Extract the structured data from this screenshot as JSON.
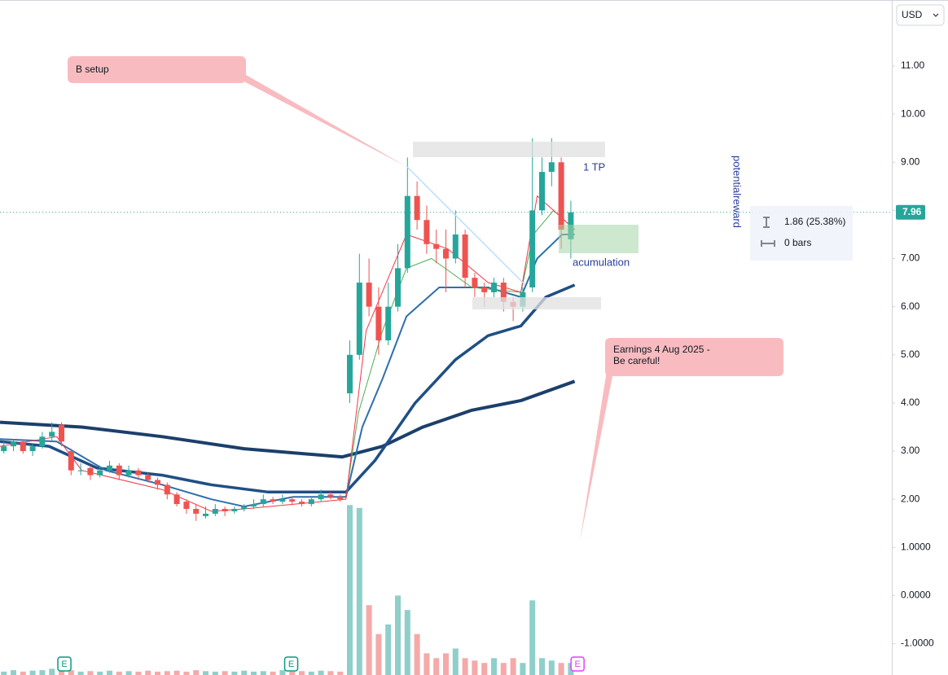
{
  "chart_data": {
    "type": "candlestick",
    "currency": "USD",
    "x": [
      0,
      1,
      2,
      3,
      4,
      5,
      6,
      7,
      8,
      9,
      10,
      11,
      12,
      13,
      14,
      15,
      16,
      17,
      18,
      19,
      20,
      21,
      22,
      23,
      24,
      25,
      26,
      27,
      28,
      29,
      30,
      31,
      32,
      33,
      34,
      35,
      36,
      37,
      38,
      39,
      40,
      41,
      42,
      43,
      44,
      45,
      46,
      47,
      48,
      49,
      50,
      51,
      52,
      53,
      54,
      55,
      56,
      57,
      58,
      59
    ],
    "open": [
      3.0,
      3.1,
      3.2,
      3.0,
      3.1,
      3.3,
      3.55,
      3.0,
      2.6,
      2.65,
      2.5,
      2.6,
      2.7,
      2.5,
      2.6,
      2.5,
      2.4,
      2.3,
      2.1,
      1.95,
      1.8,
      1.65,
      1.7,
      1.8,
      1.75,
      1.8,
      1.85,
      1.9,
      2.0,
      1.95,
      2.0,
      1.95,
      1.9,
      2.0,
      2.1,
      2.05,
      4.2,
      5.0,
      6.5,
      6.0,
      5.3,
      6.0,
      6.8,
      8.3,
      7.8,
      7.3,
      7.2,
      7.0,
      7.5,
      6.6,
      6.4,
      6.3,
      6.5,
      6.1,
      6.0,
      6.4,
      8.0,
      8.8,
      9.0,
      7.4
    ],
    "high": [
      3.2,
      3.25,
      3.25,
      3.15,
      3.4,
      3.6,
      3.6,
      3.05,
      2.75,
      2.7,
      2.7,
      2.8,
      2.75,
      2.7,
      2.65,
      2.55,
      2.45,
      2.35,
      2.15,
      2.0,
      1.9,
      1.85,
      1.9,
      1.85,
      1.85,
      1.9,
      2.0,
      2.1,
      2.05,
      2.1,
      2.05,
      2.0,
      2.05,
      2.2,
      2.15,
      2.1,
      5.3,
      7.1,
      7.0,
      6.4,
      6.5,
      7.3,
      9.1,
      8.6,
      8.1,
      7.6,
      7.6,
      8.0,
      7.6,
      6.7,
      6.5,
      6.6,
      6.6,
      6.2,
      6.4,
      9.5,
      9.1,
      9.5,
      9.1,
      8.2
    ],
    "low": [
      2.95,
      3.0,
      2.95,
      2.9,
      3.05,
      3.2,
      3.1,
      2.5,
      2.5,
      2.4,
      2.45,
      2.55,
      2.4,
      2.45,
      2.4,
      2.35,
      2.2,
      2.0,
      1.85,
      1.7,
      1.55,
      1.6,
      1.65,
      1.65,
      1.7,
      1.75,
      1.8,
      1.85,
      1.9,
      1.9,
      1.9,
      1.85,
      1.85,
      1.95,
      2.0,
      1.95,
      4.0,
      4.9,
      5.8,
      5.0,
      5.2,
      5.9,
      6.7,
      7.6,
      7.1,
      6.9,
      6.3,
      6.9,
      6.4,
      6.2,
      6.0,
      6.2,
      5.9,
      5.7,
      5.9,
      6.3,
      7.9,
      8.5,
      7.2,
      7.0
    ],
    "close": [
      3.1,
      3.2,
      3.0,
      3.1,
      3.3,
      3.4,
      3.2,
      2.6,
      2.6,
      2.5,
      2.6,
      2.7,
      2.5,
      2.6,
      2.5,
      2.4,
      2.3,
      2.1,
      1.9,
      1.8,
      1.7,
      1.7,
      1.8,
      1.75,
      1.8,
      1.85,
      1.9,
      2.0,
      1.95,
      2.0,
      1.95,
      1.9,
      2.0,
      2.1,
      2.05,
      2.0,
      5.0,
      6.5,
      6.0,
      5.3,
      6.0,
      6.8,
      8.3,
      7.8,
      7.3,
      7.2,
      7.0,
      7.5,
      6.6,
      6.4,
      6.3,
      6.5,
      6.1,
      6.0,
      6.3,
      8.0,
      8.8,
      9.0,
      7.6,
      7.96
    ],
    "volume": [
      -1.58,
      -1.55,
      -1.58,
      -1.56,
      -1.55,
      -1.52,
      -1.5,
      -1.55,
      -1.58,
      -1.57,
      -1.58,
      -1.56,
      -1.58,
      -1.57,
      -1.58,
      -1.56,
      -1.58,
      -1.57,
      -1.56,
      -1.58,
      -1.55,
      -1.57,
      -1.58,
      -1.57,
      -1.58,
      -1.56,
      -1.58,
      -1.57,
      -1.58,
      -1.55,
      -1.58,
      -1.57,
      -1.58,
      -1.56,
      -1.57,
      -1.58,
      1.88,
      1.82,
      -0.2,
      -0.8,
      -0.6,
      0.0,
      -0.3,
      -0.8,
      -1.2,
      -1.3,
      -1.2,
      -1.1,
      -1.3,
      -1.35,
      -1.4,
      -1.3,
      -1.4,
      -1.3,
      -1.4,
      -0.1,
      -1.3,
      -1.35,
      -1.4,
      -1.4
    ],
    "up_color": "#26a69a",
    "down_color": "#ef5350",
    "volume_up_color": "#8ecfca",
    "volume_down_color": "#f5a9a8",
    "series": [
      {
        "color": "#1c3f6b",
        "width": 4,
        "x": [
          -0.4,
          8.1,
          16.5,
          25,
          35.2,
          39.4,
          43.6,
          48.7,
          53.8,
          59.4
        ],
        "values": [
          3.6,
          3.5,
          3.3,
          3.05,
          2.88,
          3.1,
          3.5,
          3.85,
          4.05,
          4.45
        ]
      },
      {
        "color": "#1f4f85",
        "width": 3.5,
        "x": [
          -0.4,
          4.7,
          9.7,
          16.5,
          21.6,
          27.5,
          35.6,
          38.6,
          42.8,
          47,
          50.4,
          53.8,
          56.4,
          59.4
        ],
        "values": [
          3.2,
          3.1,
          2.65,
          2.5,
          2.3,
          2.15,
          2.15,
          2.8,
          4.0,
          4.9,
          5.4,
          5.6,
          6.2,
          6.45
        ]
      },
      {
        "color": "#2f6fad",
        "width": 2,
        "x": [
          -0.4,
          5.5,
          10.6,
          16.5,
          21.6,
          25,
          30.1,
          35.6,
          37.3,
          39.4,
          41.9,
          45.3,
          50.4,
          53.8,
          55.5,
          58.1,
          59.4
        ],
        "values": [
          3.25,
          3.2,
          2.6,
          2.3,
          2.0,
          1.85,
          2.05,
          2.05,
          3.5,
          4.5,
          5.8,
          6.4,
          6.4,
          6.2,
          7.0,
          7.5,
          7.5
        ]
      },
      {
        "color": "#4caf50",
        "width": 1,
        "x": [
          35.6,
          36.9,
          39.4,
          41.9,
          44.5,
          48.7,
          53.8,
          55.1,
          57.2,
          59.4
        ],
        "values": [
          2.05,
          3.8,
          5.5,
          6.8,
          7.0,
          6.4,
          6.3,
          7.5,
          8.0,
          7.6
        ]
      },
      {
        "color": "#f23645",
        "width": 1,
        "x": [
          -0.4,
          5.5,
          8.1,
          16.5,
          21.6,
          25,
          35.6,
          37.7,
          41.9,
          46.2,
          50.4,
          53.8,
          55.5,
          57.2,
          59.4
        ],
        "values": [
          3.1,
          3.3,
          2.6,
          2.2,
          1.75,
          1.8,
          2.0,
          5.5,
          7.5,
          7.2,
          6.5,
          6.3,
          8.3,
          8.0,
          7.6
        ]
      }
    ],
    "xlim": [
      -0.4,
      92.4
    ],
    "ylim": [
      -1.65,
      12.37
    ],
    "yticks": [
      {
        "value": 11,
        "label": "11.00"
      },
      {
        "value": 10,
        "label": "10.00"
      },
      {
        "value": 9,
        "label": "9.00"
      },
      {
        "value": 8,
        "label": "8.00"
      },
      {
        "value": 7,
        "label": "7.00"
      },
      {
        "value": 6,
        "label": "6.00"
      },
      {
        "value": 5,
        "label": "5.00"
      },
      {
        "value": 4,
        "label": "4.00"
      },
      {
        "value": 3,
        "label": "3.00"
      },
      {
        "value": 2,
        "label": "2.00"
      },
      {
        "value": 1,
        "label": "1.0000"
      },
      {
        "value": 0,
        "label": "0.0000"
      },
      {
        "value": -1,
        "label": "-1.0000"
      }
    ],
    "last_price": 7.96,
    "events": [
      {
        "x": 6.3,
        "label": "E"
      },
      {
        "x": 29.9,
        "label": "E"
      },
      {
        "x": 59.7,
        "label": "E"
      }
    ],
    "annotations": {
      "b_setup": "B setup",
      "earnings": [
        "Earnings 4 Aug 2025 -",
        "Be careful!"
      ],
      "tp": "1 TP",
      "accumulation": "acumulation",
      "potential": "potentialreward"
    },
    "measure": {
      "change": "1.86 (25.38%)",
      "bars": "0 bars"
    }
  }
}
